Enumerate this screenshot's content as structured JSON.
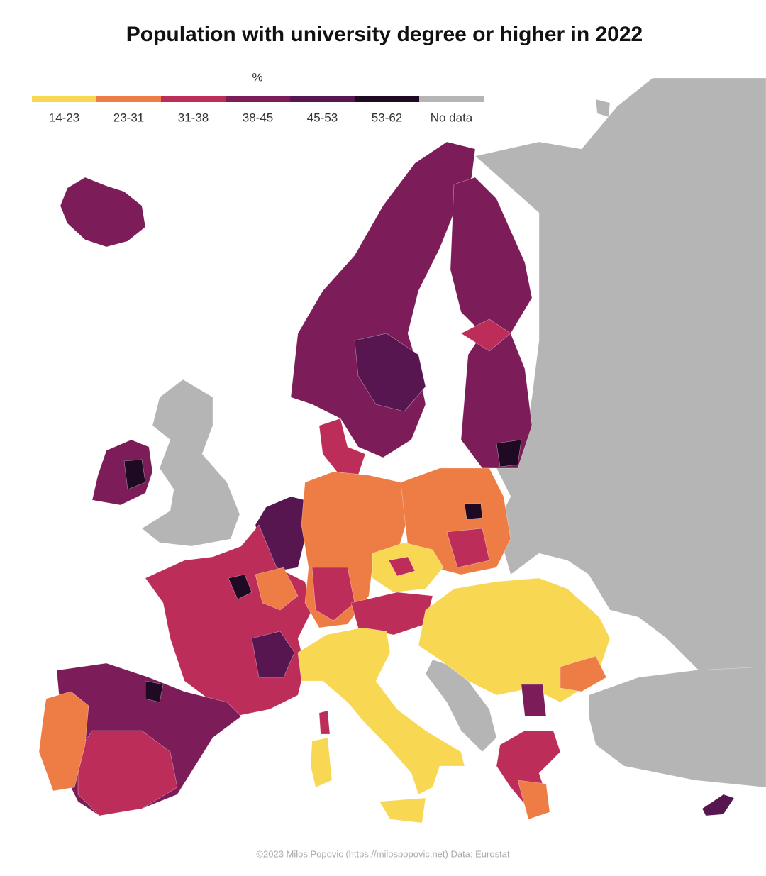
{
  "header": {
    "title": "Population with university degree or higher in 2022"
  },
  "legend": {
    "unit": "%",
    "items": [
      {
        "label": "14-23",
        "color": "#f8d753"
      },
      {
        "label": "23-31",
        "color": "#ed7d45"
      },
      {
        "label": "31-38",
        "color": "#bd2d59"
      },
      {
        "label": "38-45",
        "color": "#7c1d59"
      },
      {
        "label": "45-53",
        "color": "#571650"
      },
      {
        "label": "53-62",
        "color": "#1e0a22"
      },
      {
        "label": "No data",
        "color": "#b5b5b5"
      }
    ]
  },
  "credit": "©2023 Milos Popovic (https://milospopovic.net) Data: Eurostat"
}
